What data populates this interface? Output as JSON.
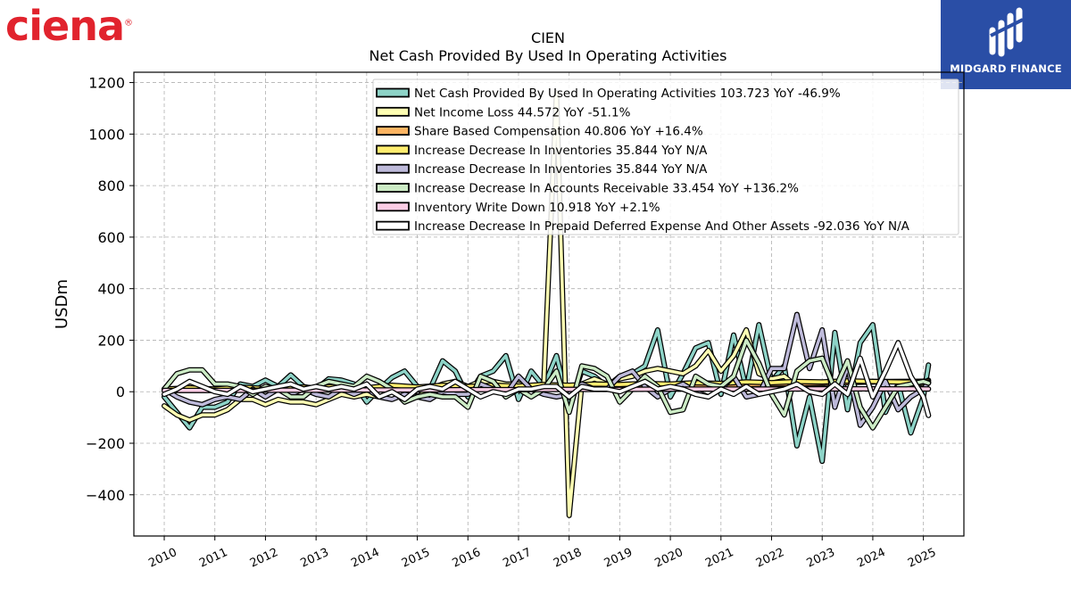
{
  "branding": {
    "left_logo_text": "ciena",
    "right_badge_text": "MIDGARD FINANCE"
  },
  "chart_data": {
    "type": "line",
    "title": "CIEN",
    "subtitle": "Net Cash Provided By Used In Operating Activities",
    "ylabel": "USDm",
    "xlabel": "",
    "xlim": [
      2009.4,
      2025.8
    ],
    "ylim": [
      -560,
      1240
    ],
    "yticks": [
      -400,
      -200,
      0,
      200,
      400,
      600,
      800,
      1000,
      1200
    ],
    "xticks": [
      "2010",
      "2011",
      "2012",
      "2013",
      "2014",
      "2015",
      "2016",
      "2017",
      "2018",
      "2019",
      "2020",
      "2021",
      "2022",
      "2023",
      "2024",
      "2025"
    ],
    "grid": true,
    "legend_position": "top-right",
    "series": [
      {
        "name": "Net Cash Provided By Used In Operating Activities",
        "value_label": "103.723",
        "yoy": "YoY -46.9%",
        "color": "#8dd3c7",
        "x": [
          2010,
          2010.25,
          2010.5,
          2010.75,
          2011,
          2011.25,
          2011.5,
          2011.75,
          2012,
          2012.25,
          2012.5,
          2012.75,
          2013,
          2013.25,
          2013.5,
          2013.75,
          2014,
          2014.25,
          2014.5,
          2014.75,
          2015,
          2015.25,
          2015.5,
          2015.75,
          2016,
          2016.25,
          2016.5,
          2016.75,
          2017,
          2017.25,
          2017.5,
          2017.75,
          2018,
          2018.25,
          2018.5,
          2018.75,
          2019,
          2019.25,
          2019.5,
          2019.75,
          2020,
          2020.25,
          2020.5,
          2020.75,
          2021,
          2021.25,
          2021.5,
          2021.75,
          2022,
          2022.25,
          2022.5,
          2022.75,
          2023,
          2023.25,
          2023.5,
          2023.75,
          2024,
          2024.25,
          2024.5,
          2024.75,
          2025,
          2025.1
        ],
        "y": [
          -20,
          -80,
          -140,
          -60,
          -60,
          -40,
          30,
          20,
          45,
          20,
          65,
          20,
          10,
          50,
          45,
          30,
          -40,
          10,
          55,
          80,
          20,
          10,
          120,
          80,
          -20,
          60,
          80,
          140,
          -30,
          80,
          20,
          140,
          -60,
          80,
          60,
          20,
          60,
          70,
          100,
          240,
          -20,
          70,
          170,
          190,
          -10,
          220,
          10,
          260,
          40,
          100,
          -210,
          -20,
          -270,
          230,
          -70,
          190,
          260,
          -80,
          30,
          -160,
          -20,
          103.723
        ]
      },
      {
        "name": "Net Income Loss",
        "value_label": "44.572",
        "yoy": "YoY -51.1%",
        "color": "#ffffb3",
        "x": [
          2010,
          2010.25,
          2010.5,
          2010.75,
          2011,
          2011.25,
          2011.5,
          2011.75,
          2012,
          2012.25,
          2012.5,
          2012.75,
          2013,
          2013.25,
          2013.5,
          2013.75,
          2014,
          2014.25,
          2014.5,
          2014.75,
          2015,
          2015.25,
          2015.5,
          2015.75,
          2016,
          2016.25,
          2016.5,
          2016.75,
          2017,
          2017.25,
          2017.5,
          2017.75,
          2018,
          2018.25,
          2018.5,
          2018.75,
          2019,
          2019.25,
          2019.5,
          2019.75,
          2020,
          2020.25,
          2020.5,
          2020.75,
          2021,
          2021.25,
          2021.5,
          2021.75,
          2022,
          2022.25,
          2022.5,
          2022.75,
          2023,
          2023.25,
          2023.5,
          2023.75,
          2024,
          2024.25,
          2024.5,
          2024.75,
          2025,
          2025.1
        ],
        "y": [
          -55,
          -90,
          -110,
          -90,
          -90,
          -70,
          -30,
          -30,
          -50,
          -30,
          -40,
          -40,
          -50,
          -30,
          -10,
          -20,
          -10,
          -20,
          0,
          20,
          -20,
          10,
          30,
          40,
          20,
          40,
          40,
          30,
          30,
          20,
          30,
          1160,
          -480,
          30,
          50,
          30,
          50,
          60,
          80,
          90,
          80,
          70,
          100,
          160,
          80,
          140,
          240,
          70,
          50,
          60,
          20,
          30,
          30,
          40,
          40,
          40,
          40,
          40,
          40,
          40,
          30,
          44.572
        ]
      },
      {
        "name": "Share Based Compensation",
        "value_label": "40.806",
        "yoy": "YoY +16.4%",
        "color": "#fdb462",
        "x": [
          2010,
          2011,
          2012,
          2013,
          2014,
          2015,
          2016,
          2017,
          2018,
          2019,
          2020,
          2021,
          2022,
          2023,
          2024,
          2025.1
        ],
        "y": [
          5,
          5,
          8,
          10,
          10,
          12,
          15,
          18,
          20,
          20,
          22,
          25,
          30,
          33,
          38,
          40.806
        ]
      },
      {
        "name": "Increase Decrease In Inventories",
        "value_label": "35.844",
        "yoy": "YoY N/A",
        "color": "#ffed6f",
        "x": [
          2010,
          2010.5,
          2011,
          2011.5,
          2012,
          2012.5,
          2013,
          2013.5,
          2014,
          2014.5,
          2015,
          2015.5,
          2016,
          2016.5,
          2017,
          2017.5,
          2018,
          2018.5,
          2019,
          2019.5,
          2020,
          2020.5,
          2021,
          2021.5,
          2022,
          2022.5,
          2023,
          2023.5,
          2024,
          2024.5,
          2025.1
        ],
        "y": [
          10,
          15,
          10,
          18,
          12,
          20,
          15,
          22,
          15,
          25,
          18,
          25,
          20,
          25,
          22,
          28,
          25,
          30,
          28,
          32,
          30,
          35,
          32,
          38,
          35,
          40,
          38,
          42,
          40,
          38,
          35.844
        ]
      },
      {
        "name": "Increase Decrease In Inventories",
        "value_label": "35.844",
        "yoy": "YoY N/A",
        "color": "#bebada",
        "x": [
          2010,
          2010.25,
          2010.5,
          2010.75,
          2011,
          2011.25,
          2011.5,
          2011.75,
          2012,
          2012.25,
          2012.5,
          2012.75,
          2013,
          2013.25,
          2013.5,
          2013.75,
          2014,
          2014.25,
          2014.5,
          2014.75,
          2015,
          2015.25,
          2015.5,
          2015.75,
          2016,
          2016.25,
          2016.5,
          2016.75,
          2017,
          2017.25,
          2017.5,
          2017.75,
          2018,
          2018.25,
          2018.5,
          2018.75,
          2019,
          2019.25,
          2019.5,
          2019.75,
          2020,
          2020.25,
          2020.5,
          2020.75,
          2021,
          2021.25,
          2021.5,
          2021.75,
          2022,
          2022.25,
          2022.5,
          2022.75,
          2023,
          2023.25,
          2023.5,
          2023.75,
          2024,
          2024.25,
          2024.5,
          2024.75,
          2025,
          2025.1
        ],
        "y": [
          10,
          -20,
          -40,
          -50,
          -30,
          -20,
          -30,
          10,
          -20,
          10,
          -10,
          10,
          -10,
          -20,
          10,
          -10,
          10,
          -20,
          -30,
          -10,
          -20,
          -30,
          0,
          -10,
          -10,
          30,
          10,
          -10,
          60,
          10,
          -10,
          -20,
          -10,
          30,
          10,
          10,
          60,
          80,
          20,
          -20,
          10,
          30,
          0,
          -20,
          10,
          60,
          -20,
          -10,
          90,
          90,
          300,
          90,
          240,
          -60,
          100,
          -130,
          -60,
          40,
          -70,
          -20,
          10,
          35.844
        ]
      },
      {
        "name": "Increase Decrease In Accounts Receivable",
        "value_label": "33.454",
        "yoy": "YoY +136.2%",
        "color": "#ccebc5",
        "x": [
          2010,
          2010.25,
          2010.5,
          2010.75,
          2011,
          2011.25,
          2011.5,
          2011.75,
          2012,
          2012.25,
          2012.5,
          2012.75,
          2013,
          2013.25,
          2013.5,
          2013.75,
          2014,
          2014.25,
          2014.5,
          2014.75,
          2015,
          2015.25,
          2015.5,
          2015.75,
          2016,
          2016.25,
          2016.5,
          2016.75,
          2017,
          2017.25,
          2017.5,
          2017.75,
          2018,
          2018.25,
          2018.5,
          2018.75,
          2019,
          2019.25,
          2019.5,
          2019.75,
          2020,
          2020.25,
          2020.5,
          2020.75,
          2021,
          2021.25,
          2021.5,
          2021.75,
          2022,
          2022.25,
          2022.5,
          2022.75,
          2023,
          2023.25,
          2023.5,
          2023.75,
          2024,
          2024.25,
          2024.5,
          2024.75,
          2025,
          2025.1
        ],
        "y": [
          10,
          70,
          85,
          85,
          30,
          30,
          20,
          -10,
          20,
          10,
          -20,
          -20,
          20,
          40,
          30,
          20,
          60,
          40,
          10,
          -40,
          -20,
          -10,
          -20,
          -20,
          -60,
          60,
          40,
          -20,
          10,
          -20,
          10,
          80,
          -80,
          100,
          90,
          60,
          -40,
          10,
          60,
          20,
          -80,
          -70,
          60,
          30,
          20,
          60,
          200,
          110,
          -10,
          -90,
          80,
          120,
          130,
          10,
          120,
          -60,
          -140,
          -60,
          20,
          30,
          40,
          33.454
        ]
      },
      {
        "name": "Inventory Write Down",
        "value_label": "10.918",
        "yoy": "YoY +2.1%",
        "color": "#fccde5",
        "x": [
          2010,
          2011,
          2012,
          2013,
          2014,
          2015,
          2016,
          2017,
          2018,
          2019,
          2020,
          2021,
          2022,
          2023,
          2024,
          2025.1
        ],
        "y": [
          5,
          5,
          6,
          6,
          7,
          7,
          8,
          8,
          9,
          9,
          10,
          10,
          10,
          11,
          11,
          10.918
        ]
      },
      {
        "name": "Increase Decrease In Prepaid Deferred Expense And Other Assets",
        "value_label": "-92.036",
        "yoy": "YoY N/A",
        "color": "#ffffff",
        "x": [
          2010,
          2010.25,
          2010.5,
          2010.75,
          2011,
          2011.25,
          2011.5,
          2011.75,
          2012,
          2012.25,
          2012.5,
          2012.75,
          2013,
          2013.25,
          2013.5,
          2013.75,
          2014,
          2014.25,
          2014.5,
          2014.75,
          2015,
          2015.25,
          2015.5,
          2015.75,
          2016,
          2016.25,
          2016.5,
          2016.75,
          2017,
          2017.25,
          2017.5,
          2017.75,
          2018,
          2018.25,
          2018.5,
          2018.75,
          2019,
          2019.25,
          2019.5,
          2019.75,
          2020,
          2020.25,
          2020.5,
          2020.75,
          2021,
          2021.25,
          2021.5,
          2021.75,
          2022,
          2022.25,
          2022.5,
          2022.75,
          2023,
          2023.25,
          2023.5,
          2023.75,
          2024,
          2024.25,
          2024.5,
          2024.75,
          2025,
          2025.1
        ],
        "y": [
          -10,
          10,
          40,
          20,
          0,
          -10,
          20,
          0,
          10,
          20,
          30,
          10,
          20,
          10,
          20,
          10,
          30,
          -20,
          0,
          -30,
          10,
          20,
          10,
          40,
          10,
          -20,
          0,
          -10,
          10,
          10,
          20,
          20,
          -20,
          20,
          10,
          10,
          0,
          20,
          40,
          10,
          20,
          10,
          -10,
          -20,
          10,
          -10,
          20,
          -10,
          0,
          10,
          30,
          0,
          -10,
          30,
          -10,
          130,
          -20,
          80,
          190,
          60,
          -20,
          -92.036
        ]
      }
    ]
  }
}
